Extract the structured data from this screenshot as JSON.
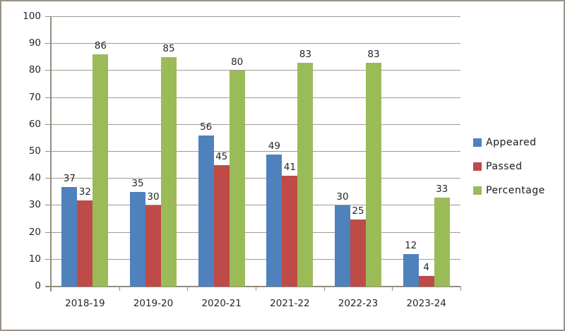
{
  "chart_data": {
    "type": "bar",
    "title": "",
    "xlabel": "",
    "ylabel": "",
    "categories": [
      "2018-19",
      "2019-20",
      "2020-21",
      "2021-22",
      "2022-23",
      "2023-24"
    ],
    "series": [
      {
        "name": "Appeared",
        "color": "#4F81BD",
        "values": [
          37,
          35,
          56,
          49,
          30,
          12
        ]
      },
      {
        "name": "Passed",
        "color": "#BE4B48",
        "values": [
          32,
          30,
          45,
          41,
          25,
          4
        ]
      },
      {
        "name": "Percentage",
        "color": "#9BBB59",
        "values": [
          86,
          85,
          80,
          83,
          83,
          33
        ]
      }
    ],
    "ylim": [
      0,
      100
    ],
    "yticks": [
      0,
      10,
      20,
      30,
      40,
      50,
      60,
      70,
      80,
      90,
      100
    ],
    "grid": true,
    "data_labels": true,
    "legend_position": "right",
    "colors": {
      "gridline": "#a19a90",
      "axis": "#938c82",
      "frame_border": "#9b9388",
      "text": "#262626",
      "background": "#ffffff"
    }
  }
}
